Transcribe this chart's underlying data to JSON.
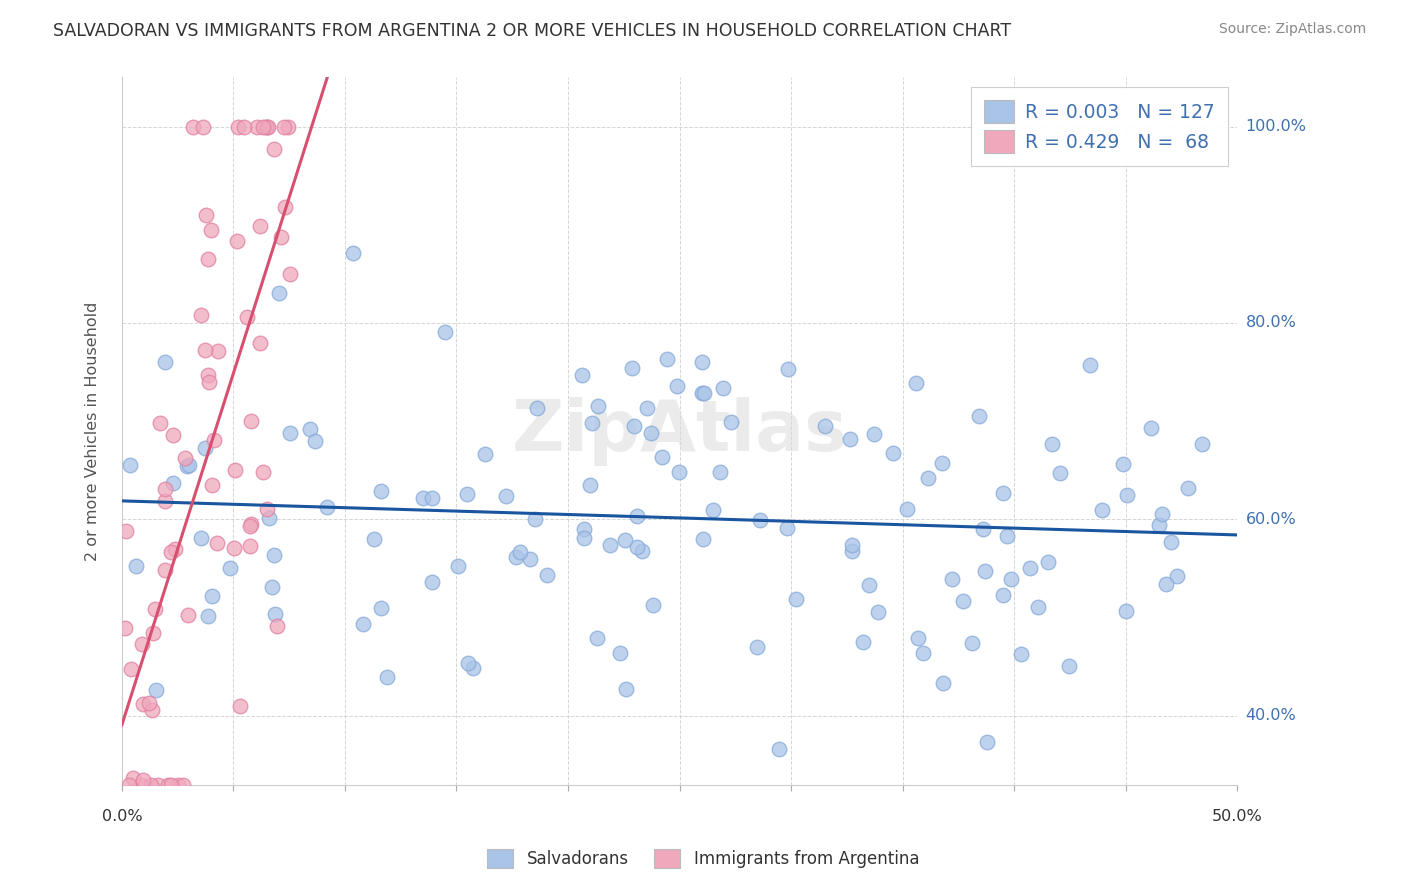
{
  "title": "SALVADORAN VS IMMIGRANTS FROM ARGENTINA 2 OR MORE VEHICLES IN HOUSEHOLD CORRELATION CHART",
  "source": "Source: ZipAtlas.com",
  "ylabel_label": "2 or more Vehicles in Household",
  "legend_labels": [
    "Salvadorans",
    "Immigrants from Argentina"
  ],
  "r_blue": 0.003,
  "n_blue": 127,
  "r_pink": 0.429,
  "n_pink": 68,
  "watermark": "ZipAtlas",
  "blue_color": "#aac4e8",
  "blue_edge_color": "#85aad8",
  "blue_line_color": "#1a56a0",
  "pink_color": "#f0a8bc",
  "pink_edge_color": "#e080a0",
  "pink_line_color": "#d85070",
  "background_color": "#ffffff",
  "grid_color": "#cccccc",
  "axis_label_color": "#4070b0",
  "tick_label_color": "#333333",
  "ylabel_color": "#555555",
  "title_color": "#333333",
  "source_color": "#888888",
  "xlim": [
    0,
    50
  ],
  "ylim": [
    33,
    105
  ],
  "yticks": [
    40,
    60,
    80,
    100
  ],
  "ytick_labels": [
    "40.0%",
    "60.0%",
    "80.0%",
    "100.0%"
  ],
  "xtick_labels_shown": [
    "0.0%",
    "50.0%"
  ],
  "watermark_color": "#d8d8d8",
  "watermark_fontsize": 52,
  "scatter_size": 110,
  "scatter_alpha": 0.75,
  "scatter_linewidth": 1.0
}
